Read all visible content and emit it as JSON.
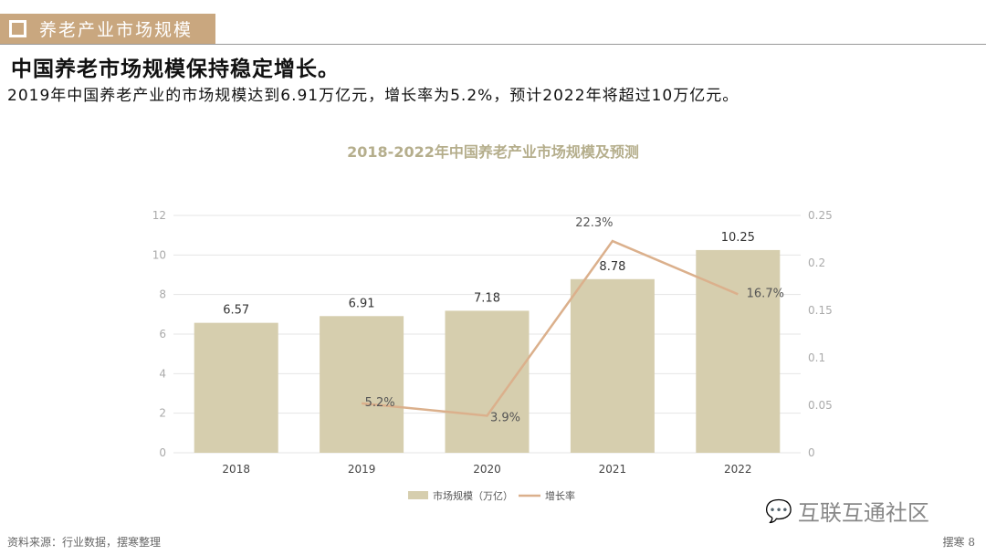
{
  "header": {
    "section": "养老产业市场规模"
  },
  "headline": "中国养老市场规模保持稳定增长。",
  "summary": "2019年中国养老产业的市场规模达到6.91万亿元，增长率为5.2%，预计2022年将超过10万亿元。",
  "footer": {
    "source": "资料来源：行业数据，摆寒整理",
    "page": "摆寒 8",
    "watermark": "互联互通社区"
  },
  "colors": {
    "bar": "#d6ceae",
    "line": "#dbb08c",
    "title": "#b5ae8c",
    "header": "#c9a77f"
  },
  "chart_data": {
    "type": "bar+line",
    "title": "2018-2022年中国养老产业市场规模及预测",
    "categories": [
      "2018",
      "2019",
      "2020",
      "2021",
      "2022"
    ],
    "series": [
      {
        "name": "市场规模（万亿）",
        "type": "bar",
        "axis": "left",
        "values": [
          6.57,
          6.91,
          7.18,
          8.78,
          10.25
        ],
        "labels": [
          "6.57",
          "6.91",
          "7.18",
          "8.78",
          "10.25"
        ]
      },
      {
        "name": "增长率",
        "type": "line",
        "axis": "right",
        "values": [
          null,
          0.052,
          0.039,
          0.223,
          0.167
        ],
        "labels": [
          "",
          "5.2%",
          "3.9%",
          "22.3%",
          "16.7%"
        ]
      }
    ],
    "left_axis": {
      "range": [
        0,
        12
      ],
      "ticks": [
        "0",
        "2",
        "4",
        "6",
        "8",
        "10",
        "12"
      ]
    },
    "right_axis": {
      "range": [
        0,
        0.25
      ],
      "ticks": [
        "0",
        "0.05",
        "0.1",
        "0.15",
        "0.2",
        "0.25"
      ]
    },
    "grid": true,
    "legend": "bottom"
  }
}
